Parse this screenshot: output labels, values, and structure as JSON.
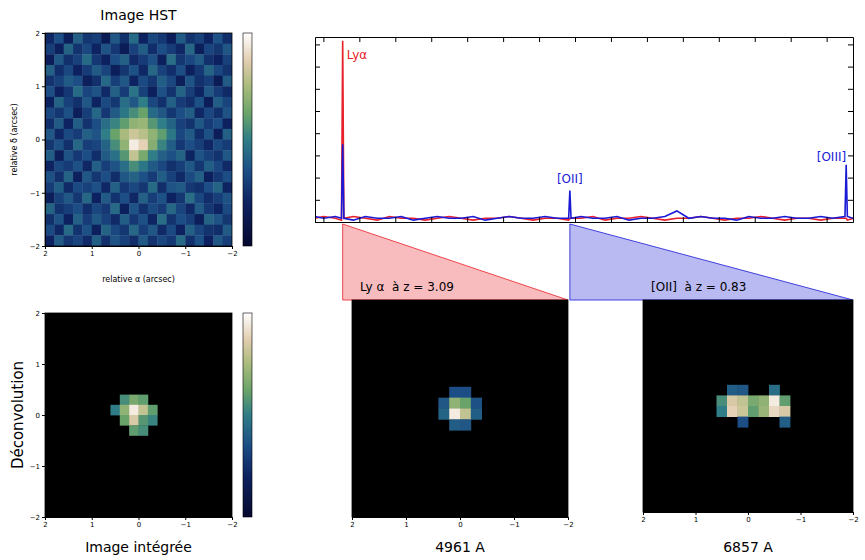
{
  "chart_data": [
    {
      "type": "heatmap",
      "title": "Image HST",
      "xlabel": "relative α (arcsec)",
      "ylabel": "relative δ (arcsec)",
      "xlim": [
        2,
        -2
      ],
      "ylim": [
        -2,
        2
      ],
      "xticks": [
        2,
        1,
        0,
        {
          "value": -1,
          "label": "−1"
        },
        {
          "value": -2,
          "label": "−2"
        }
      ],
      "yticks": [
        2,
        1,
        0,
        {
          "value": -1,
          "label": "−1"
        },
        {
          "value": -2,
          "label": "−2"
        }
      ],
      "pixel_size": 0.2,
      "color_range": [
        0,
        100
      ],
      "colorbar": true,
      "pixels": [
        [
          22,
          35,
          18,
          41,
          27,
          30,
          15,
          38,
          25,
          44,
          20,
          33,
          28,
          17,
          39,
          26,
          31,
          21,
          36,
          24
        ],
        [
          30,
          19,
          42,
          26,
          33,
          21,
          37,
          28,
          16,
          31,
          40,
          24,
          35,
          29,
          22,
          43,
          18,
          32,
          27,
          38
        ],
        [
          17,
          38,
          25,
          31,
          44,
          28,
          20,
          35,
          41,
          23,
          29,
          36,
          19,
          45,
          27,
          33,
          39,
          25,
          20,
          31
        ],
        [
          41,
          24,
          33,
          20,
          29,
          39,
          32,
          18,
          27,
          36,
          22,
          43,
          31,
          24,
          35,
          19,
          28,
          42,
          33,
          26
        ],
        [
          26,
          31,
          39,
          35,
          18,
          25,
          43,
          30,
          38,
          21,
          34,
          27,
          40,
          33,
          18,
          37,
          25,
          30,
          16,
          39
        ],
        [
          35,
          20,
          28,
          44,
          32,
          37,
          23,
          41,
          29,
          47,
          31,
          19,
          36,
          26,
          42,
          30,
          21,
          38,
          29,
          23
        ],
        [
          19,
          42,
          31,
          25,
          38,
          21,
          34,
          27,
          45,
          38,
          50,
          33,
          25,
          41,
          29,
          24,
          36,
          17,
          40,
          32
        ],
        [
          33,
          27,
          36,
          18,
          30,
          43,
          28,
          39,
          48,
          55,
          62,
          44,
          38,
          27,
          35,
          40,
          22,
          33,
          25,
          37
        ],
        [
          24,
          39,
          21,
          40,
          26,
          35,
          45,
          52,
          60,
          70,
          72,
          58,
          50,
          42,
          31,
          26,
          38,
          29,
          35,
          20
        ],
        [
          38,
          22,
          34,
          29,
          41,
          37,
          50,
          62,
          75,
          82,
          78,
          70,
          60,
          48,
          33,
          39,
          24,
          36,
          18,
          41
        ],
        [
          27,
          36,
          25,
          43,
          30,
          32,
          42,
          55,
          70,
          95,
          88,
          68,
          52,
          40,
          28,
          35,
          30,
          22,
          34,
          29
        ],
        [
          40,
          18,
          37,
          28,
          35,
          24,
          39,
          46,
          58,
          80,
          65,
          50,
          41,
          36,
          42,
          21,
          37,
          31,
          26,
          38
        ],
        [
          21,
          33,
          29,
          36,
          22,
          41,
          30,
          37,
          45,
          55,
          48,
          39,
          33,
          25,
          30,
          38,
          27,
          40,
          33,
          23
        ],
        [
          36,
          25,
          42,
          19,
          38,
          27,
          35,
          24,
          38,
          42,
          36,
          29,
          40,
          31,
          23,
          34,
          41,
          19,
          28,
          35
        ],
        [
          29,
          40,
          23,
          34,
          31,
          36,
          22,
          41,
          28,
          33,
          27,
          44,
          24,
          37,
          39,
          28,
          25,
          35,
          42,
          21
        ],
        [
          18,
          31,
          38,
          27,
          43,
          20,
          39,
          26,
          35,
          22,
          41,
          30,
          36,
          20,
          27,
          45,
          33,
          24,
          30,
          37
        ],
        [
          42,
          26,
          30,
          35,
          24,
          33,
          28,
          44,
          19,
          37,
          25,
          34,
          29,
          43,
          32,
          22,
          39,
          28,
          21,
          34
        ],
        [
          25,
          37,
          20,
          41,
          29,
          38,
          31,
          23,
          40,
          28,
          36,
          21,
          45,
          26,
          35,
          30,
          18,
          42,
          37,
          27
        ],
        [
          34,
          22,
          44,
          26,
          36,
          19,
          42,
          33,
          27,
          43,
          30,
          38,
          23,
          34,
          20,
          41,
          32,
          26,
          24,
          39
        ],
        [
          20,
          39,
          27,
          32,
          23,
          40,
          25,
          37,
          31,
          24,
          39,
          26,
          33,
          28,
          44,
          25,
          36,
          20,
          38,
          30
        ]
      ]
    },
    {
      "type": "line",
      "tick_labels": false,
      "xlim": [
        4730,
        9220
      ],
      "ylim": [
        0,
        100
      ],
      "xticks": [
        4800,
        5100,
        5400,
        5700,
        6000,
        6300,
        6600,
        6900,
        7200,
        7500,
        7800,
        8100,
        8400,
        8700,
        9000
      ],
      "yticks": [
        0,
        12,
        24,
        36,
        48,
        60,
        72,
        84,
        96
      ],
      "x": [
        4730,
        4800,
        4900,
        4951,
        4961,
        4971,
        5050,
        5150,
        5250,
        5350,
        5450,
        5550,
        5650,
        5750,
        5850,
        5950,
        6050,
        6150,
        6250,
        6350,
        6450,
        6550,
        6650,
        6750,
        6847,
        6857,
        6867,
        6950,
        7050,
        7150,
        7250,
        7350,
        7450,
        7550,
        7650,
        7750,
        7850,
        7950,
        8050,
        8150,
        8250,
        8350,
        8450,
        8550,
        8650,
        8750,
        8850,
        8950,
        9050,
        9153,
        9163,
        9173,
        9220
      ],
      "series": [
        {
          "color": "#e8202a",
          "values": [
            2,
            3,
            2,
            1,
            98,
            2,
            3,
            2,
            1,
            3,
            2,
            2,
            1,
            2,
            3,
            2,
            1,
            2,
            2,
            3,
            2,
            1,
            2,
            2,
            1,
            2,
            2,
            2,
            3,
            1,
            2,
            2,
            3,
            2,
            1,
            2,
            2,
            3,
            2,
            1,
            2,
            2,
            3,
            2,
            1,
            2,
            2,
            1,
            2,
            2,
            2,
            1,
            2
          ]
        },
        {
          "color": "#1a1ad6",
          "values": [
            3,
            2,
            3,
            2,
            42,
            2,
            1,
            3,
            2,
            2,
            3,
            1,
            2,
            3,
            2,
            2,
            3,
            1,
            2,
            3,
            2,
            2,
            3,
            2,
            2,
            17,
            2,
            3,
            2,
            2,
            3,
            1,
            2,
            2,
            3,
            6,
            2,
            3,
            2,
            2,
            1,
            3,
            2,
            2,
            3,
            2,
            2,
            3,
            2,
            3,
            31,
            3,
            2
          ]
        }
      ],
      "annotations": [
        {
          "text": "Lyα",
          "x": 4961,
          "y": 88,
          "color": "#e8202a"
        },
        {
          "text": "[OII]",
          "x": 6857,
          "y": 21,
          "color": "#1a1ad6"
        },
        {
          "text": "[OIII]",
          "x": 9163,
          "y": 33,
          "color": "#1a1ad6"
        }
      ]
    },
    {
      "type": "heatmap",
      "xlabel": "Image intégrée",
      "ylabel": "Déconvolution",
      "xlim": [
        2,
        -2
      ],
      "ylim": [
        -2,
        2
      ],
      "xticks": [
        2,
        1,
        0,
        {
          "value": -1,
          "label": "−1"
        },
        {
          "value": -2,
          "label": "−2"
        }
      ],
      "yticks": [
        2,
        1,
        0,
        {
          "value": -1,
          "label": "−1"
        },
        {
          "value": -2,
          "label": "−2"
        }
      ],
      "pixel_size": 0.2,
      "color_range": [
        0,
        100
      ],
      "colorbar": true,
      "cells": [
        [
          0.3,
          0.3,
          55
        ],
        [
          0.1,
          0.3,
          65
        ],
        [
          -0.1,
          0.3,
          60
        ],
        [
          0.5,
          0.1,
          50
        ],
        [
          0.3,
          0.1,
          70
        ],
        [
          0.1,
          0.1,
          95
        ],
        [
          -0.1,
          0.1,
          80
        ],
        [
          -0.3,
          0.1,
          60
        ],
        [
          0.3,
          -0.1,
          62
        ],
        [
          0.1,
          -0.1,
          85
        ],
        [
          -0.1,
          -0.1,
          58
        ],
        [
          -0.3,
          -0.1,
          52
        ],
        [
          0.1,
          -0.3,
          60
        ],
        [
          -0.1,
          -0.3,
          55
        ]
      ]
    },
    {
      "type": "heatmap",
      "title": "Ly α  à z = 3.09",
      "xlabel": "4961 A",
      "wavelength": 4961,
      "color": "#e8202a",
      "tick_labels": "x",
      "xlim": [
        2,
        -2
      ],
      "ylim": [
        -2,
        2
      ],
      "xticks": [
        2,
        1,
        0,
        {
          "value": -1,
          "label": "−1"
        },
        {
          "value": -2,
          "label": "−2"
        }
      ],
      "pixel_size": 0.2,
      "color_range": [
        0,
        100
      ],
      "colorbar": false,
      "cells": [
        [
          0.1,
          0.3,
          35
        ],
        [
          -0.1,
          0.3,
          35
        ],
        [
          0.3,
          0.1,
          38
        ],
        [
          0.1,
          0.1,
          70
        ],
        [
          -0.1,
          0.1,
          62
        ],
        [
          -0.3,
          0.1,
          36
        ],
        [
          0.3,
          -0.1,
          42
        ],
        [
          0.1,
          -0.1,
          95
        ],
        [
          -0.1,
          -0.1,
          80
        ],
        [
          -0.3,
          -0.1,
          40
        ],
        [
          0.1,
          -0.3,
          40
        ],
        [
          -0.1,
          -0.3,
          38
        ]
      ]
    },
    {
      "type": "heatmap",
      "title": "[OII]  à z = 0.83",
      "xlabel": "6857 A",
      "wavelength": 6857,
      "color": "#1a1ad6",
      "tick_labels": "x",
      "xlim": [
        2,
        -2
      ],
      "ylim": [
        -2,
        2
      ],
      "xticks": [
        2,
        1,
        0,
        {
          "value": -1,
          "label": "−1"
        },
        {
          "value": -2,
          "label": "−2"
        }
      ],
      "pixel_size": 0.2,
      "color_range": [
        0,
        100
      ],
      "colorbar": false,
      "cells": [
        [
          0.3,
          0.3,
          40
        ],
        [
          0.1,
          0.3,
          38
        ],
        [
          -0.5,
          0.3,
          45
        ],
        [
          0.5,
          0.1,
          55
        ],
        [
          0.3,
          0.1,
          85
        ],
        [
          0.1,
          0.1,
          80
        ],
        [
          -0.1,
          0.1,
          65
        ],
        [
          -0.3,
          0.1,
          70
        ],
        [
          -0.5,
          0.1,
          95
        ],
        [
          -0.7,
          0.1,
          60
        ],
        [
          0.5,
          -0.1,
          50
        ],
        [
          0.3,
          -0.1,
          88
        ],
        [
          0.1,
          -0.1,
          82
        ],
        [
          -0.1,
          -0.1,
          60
        ],
        [
          -0.3,
          -0.1,
          72
        ],
        [
          -0.5,
          -0.1,
          90
        ],
        [
          -0.7,
          -0.1,
          85
        ],
        [
          0.1,
          -0.3,
          35
        ],
        [
          -0.7,
          -0.3,
          40
        ]
      ]
    }
  ]
}
